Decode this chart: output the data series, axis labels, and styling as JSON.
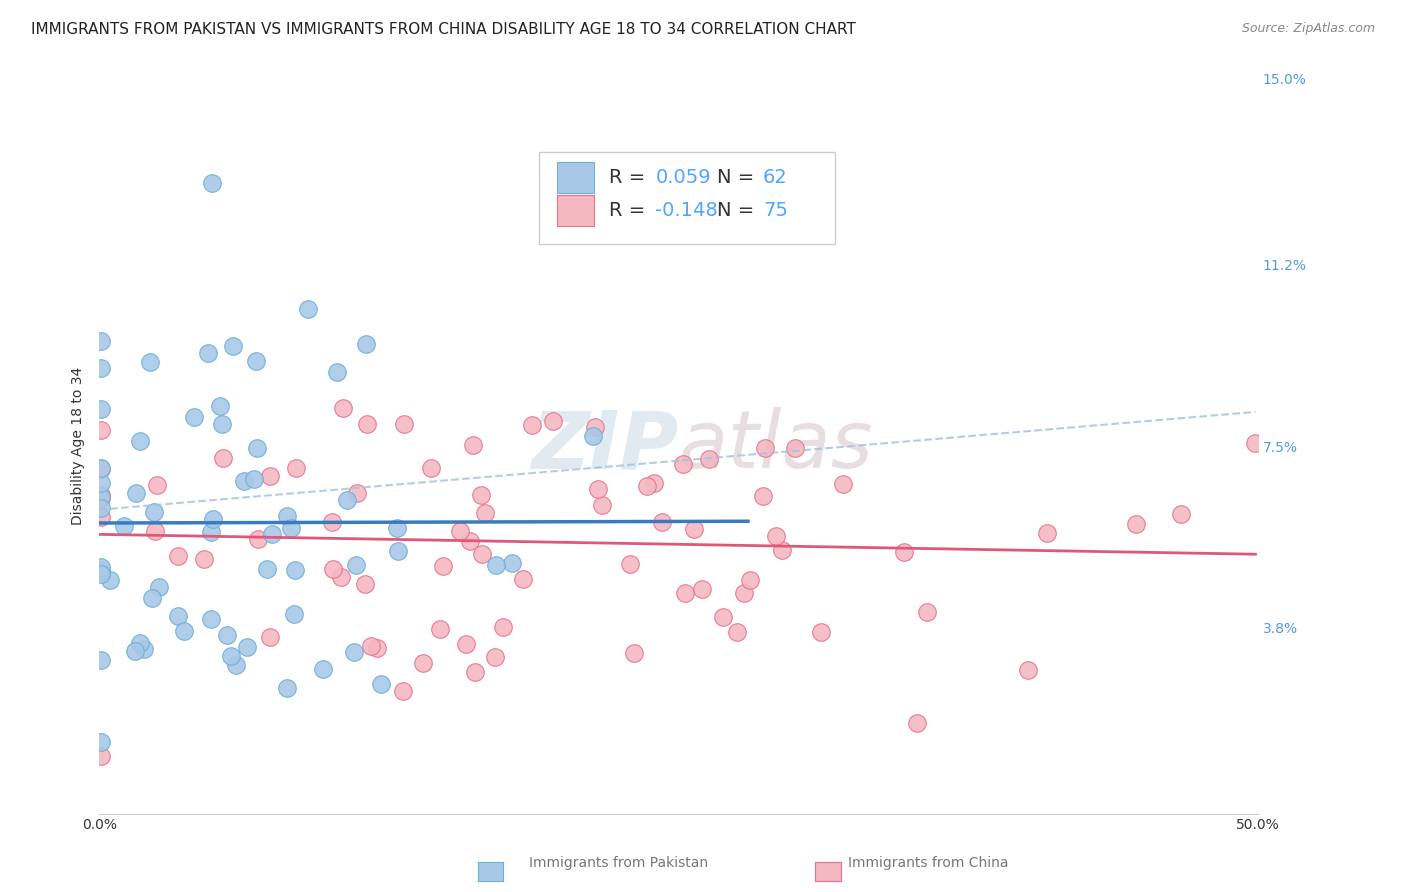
{
  "title": "IMMIGRANTS FROM PAKISTAN VS IMMIGRANTS FROM CHINA DISABILITY AGE 18 TO 34 CORRELATION CHART",
  "source": "Source: ZipAtlas.com",
  "ylabel": "Disability Age 18 to 34",
  "xlim": [
    0.0,
    0.5
  ],
  "ylim": [
    0.0,
    0.15
  ],
  "yticks_right": [
    0.038,
    0.075,
    0.112,
    0.15
  ],
  "yticklabels_right": [
    "3.8%",
    "7.5%",
    "11.2%",
    "15.0%"
  ],
  "pakistan_color": "#a8c8e8",
  "pakistan_edge": "#6baed6",
  "pakistan_line_color": "#3a7abf",
  "china_color": "#f4b8c1",
  "china_edge": "#e87090",
  "china_line_color": "#e05878",
  "dashed_line_color": "#a0c0e0",
  "pakistan_R": 0.059,
  "pakistan_N": 62,
  "china_R": -0.148,
  "china_N": 75,
  "watermark": "ZIPatlas",
  "background_color": "#ffffff",
  "grid_color": "#dddddd",
  "legend_text_dark": "#333333",
  "legend_text_blue": "#4da6ff",
  "title_fontsize": 11,
  "axis_label_fontsize": 10,
  "tick_fontsize": 10,
  "legend_fontsize": 14
}
